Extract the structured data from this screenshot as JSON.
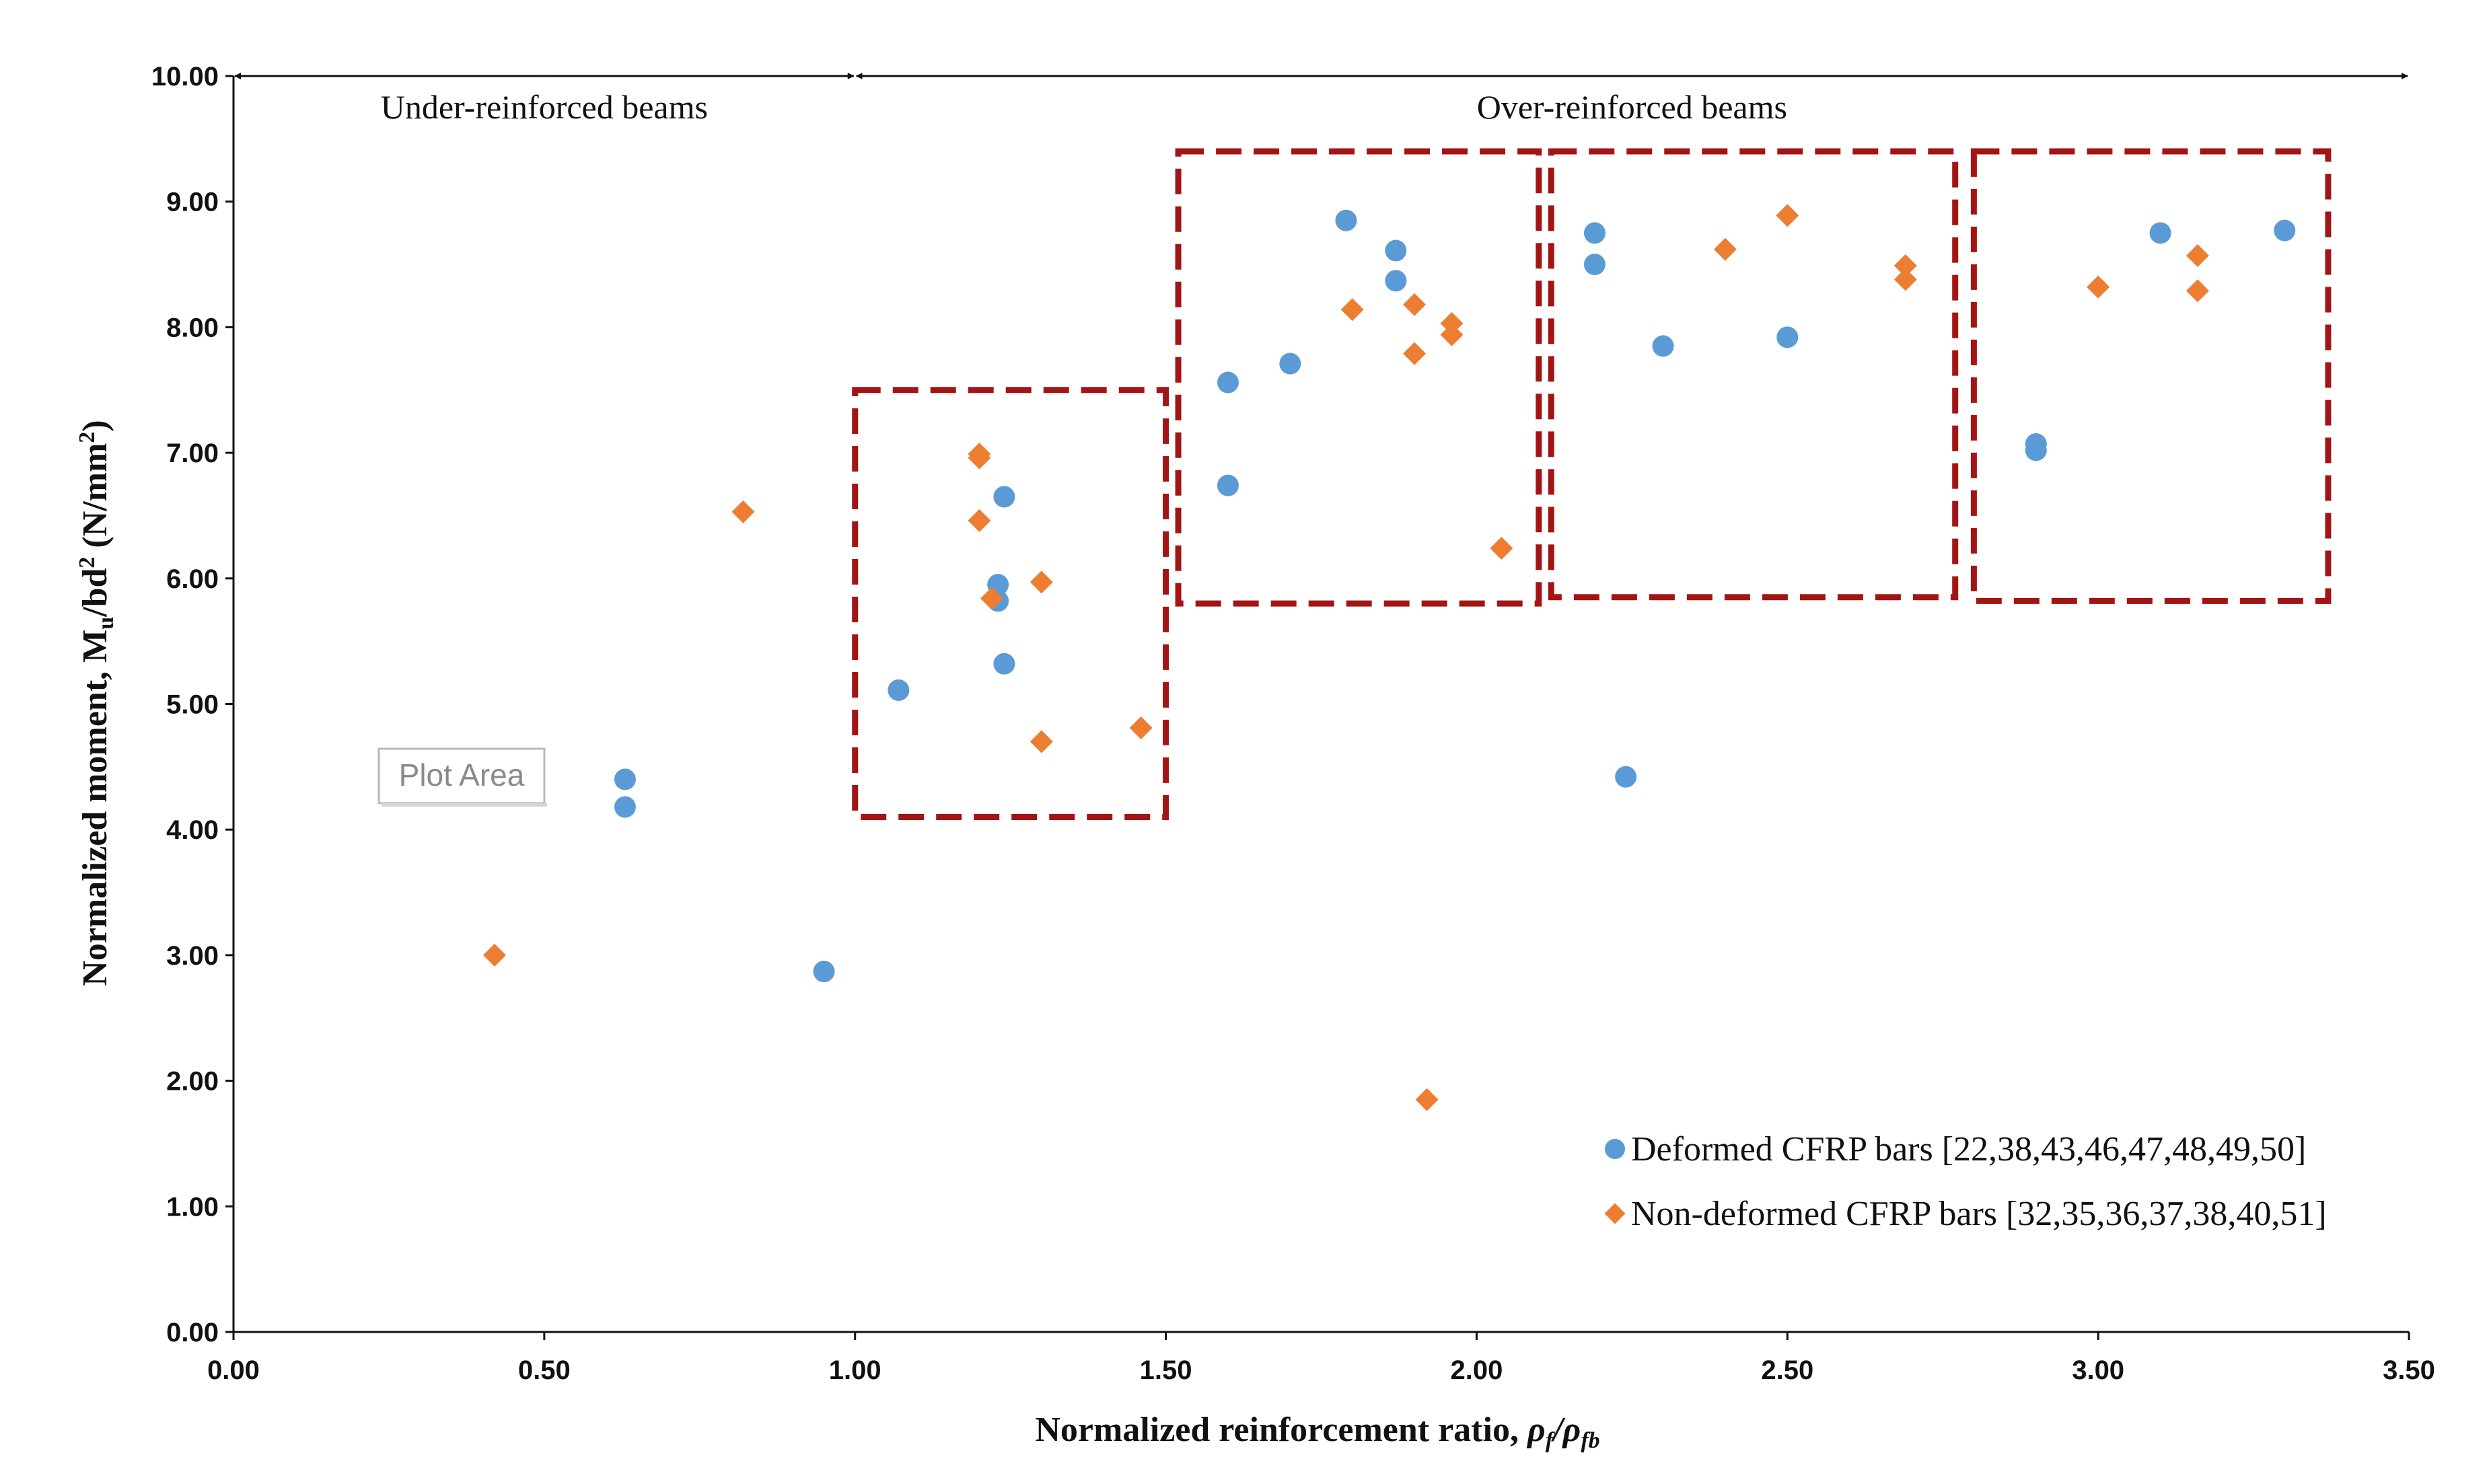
{
  "chart_data": {
    "type": "scatter",
    "xlabel_main": "Normalized reinforcement ratio, ",
    "xlabel_rho_f": "ρ",
    "xlabel_sub_f": "f",
    "xlabel_slash": "/",
    "xlabel_rho_fb": "ρ",
    "xlabel_sub_fb": "fb",
    "ylabel_main": "Normalized moment, M",
    "ylabel_sub_u": "u",
    "ylabel_bd": "/bd",
    "ylabel_sup_2": "2",
    "ylabel_units": " (N/mm",
    "ylabel_units_sup": "2",
    "ylabel_close": ")",
    "xlim": [
      0,
      3.5
    ],
    "ylim": [
      0,
      10
    ],
    "x_ticks": [
      "0.00",
      "0.50",
      "1.00",
      "1.50",
      "2.00",
      "2.50",
      "3.00",
      "3.50"
    ],
    "y_ticks": [
      "0.00",
      "1.00",
      "2.00",
      "3.00",
      "4.00",
      "5.00",
      "6.00",
      "7.00",
      "8.00",
      "9.00",
      "10.00"
    ],
    "x_tick_values": [
      0,
      0.5,
      1.0,
      1.5,
      2.0,
      2.5,
      3.0,
      3.5
    ],
    "y_tick_values": [
      0,
      1,
      2,
      3,
      4,
      5,
      6,
      7,
      8,
      9,
      10
    ],
    "regions": [
      {
        "label": "Under-reinforced beams",
        "x_start": 0.0,
        "x_end": 1.0,
        "y": 10.0
      },
      {
        "label": "Over-reinforced beams",
        "x_start": 1.0,
        "x_end": 3.5,
        "y": 10.0
      }
    ],
    "highlight_boxes": [
      {
        "x_min": 1.0,
        "x_max": 1.5,
        "y_min": 4.1,
        "y_max": 7.5
      },
      {
        "x_min": 1.52,
        "x_max": 2.1,
        "y_min": 5.8,
        "y_max": 9.4
      },
      {
        "x_min": 2.12,
        "x_max": 2.77,
        "y_min": 5.85,
        "y_max": 9.4
      },
      {
        "x_min": 2.8,
        "x_max": 3.37,
        "y_min": 5.82,
        "y_max": 9.4
      }
    ],
    "plot_area_tag": "Plot Area",
    "series": [
      {
        "name": "Deformed CFRP bars [22,38,43,46,47,48,49,50]",
        "marker": "circle",
        "color": "#5B9BD5",
        "points": [
          [
            0.63,
            4.4
          ],
          [
            0.63,
            4.18
          ],
          [
            0.95,
            2.87
          ],
          [
            1.07,
            5.11
          ],
          [
            1.23,
            5.95
          ],
          [
            1.23,
            5.82
          ],
          [
            1.24,
            6.65
          ],
          [
            1.24,
            5.32
          ],
          [
            1.6,
            7.56
          ],
          [
            1.6,
            6.74
          ],
          [
            1.7,
            7.71
          ],
          [
            1.79,
            8.85
          ],
          [
            1.87,
            8.61
          ],
          [
            1.87,
            8.37
          ],
          [
            2.19,
            8.75
          ],
          [
            2.19,
            8.5
          ],
          [
            2.24,
            4.42
          ],
          [
            2.3,
            7.85
          ],
          [
            2.5,
            7.92
          ],
          [
            2.9,
            7.07
          ],
          [
            2.9,
            7.02
          ],
          [
            3.1,
            8.75
          ],
          [
            3.3,
            8.77
          ]
        ]
      },
      {
        "name": "Non-deformed CFRP bars [32,35,36,37,38,40,51]",
        "marker": "diamond",
        "color": "#ED7D31",
        "points": [
          [
            0.42,
            3.0
          ],
          [
            0.82,
            6.53
          ],
          [
            1.2,
            6.99
          ],
          [
            1.2,
            6.96
          ],
          [
            1.2,
            6.46
          ],
          [
            1.22,
            5.84
          ],
          [
            1.3,
            5.97
          ],
          [
            1.3,
            4.7
          ],
          [
            1.46,
            4.81
          ],
          [
            1.8,
            8.14
          ],
          [
            1.9,
            8.18
          ],
          [
            1.9,
            7.79
          ],
          [
            1.92,
            1.85
          ],
          [
            1.96,
            8.03
          ],
          [
            1.96,
            7.94
          ],
          [
            2.04,
            6.24
          ],
          [
            2.4,
            8.62
          ],
          [
            2.5,
            8.89
          ],
          [
            2.69,
            8.49
          ],
          [
            2.69,
            8.38
          ],
          [
            3.0,
            8.32
          ],
          [
            3.16,
            8.57
          ],
          [
            3.16,
            8.29
          ]
        ]
      }
    ]
  },
  "colors": {
    "deformed": "#5B9BD5",
    "non_deformed": "#ED7D31",
    "box": "#A31515",
    "axis": "#111111"
  }
}
